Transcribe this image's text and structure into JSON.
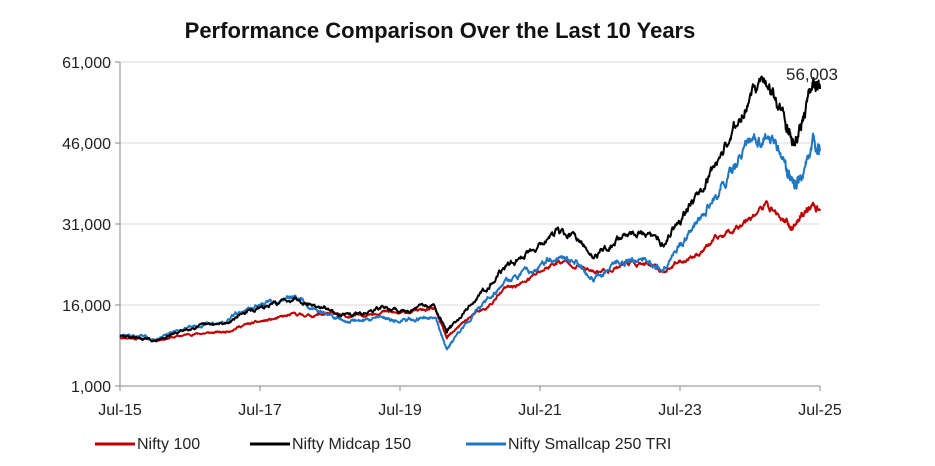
{
  "chart_data": {
    "type": "line",
    "title": "Performance Comparison Over the Last 10 Years",
    "xlabel": "",
    "ylabel": "",
    "x_ticks": [
      "Jul-15",
      "Jul-17",
      "Jul-19",
      "Jul-21",
      "Jul-23",
      "Jul-25"
    ],
    "y_ticks": [
      "1,000",
      "16,000",
      "31,000",
      "46,000",
      "61,000"
    ],
    "ylim": [
      1000,
      61000
    ],
    "xlim": [
      2015.5,
      2025.5
    ],
    "grid": "horizontal",
    "legend_position": "bottom",
    "annotation": {
      "label": "56,003",
      "x": 2025.5,
      "y": 56003,
      "series": "Nifty Midcap 150"
    },
    "series": [
      {
        "name": "Nifty 100",
        "color": "#c00000",
        "x": [
          2015.5,
          2015.75,
          2016.0,
          2016.25,
          2016.5,
          2016.75,
          2017.0,
          2017.25,
          2017.5,
          2017.75,
          2018.0,
          2018.25,
          2018.5,
          2018.75,
          2019.0,
          2019.25,
          2019.5,
          2019.75,
          2020.0,
          2020.17,
          2020.25,
          2020.5,
          2020.75,
          2021.0,
          2021.25,
          2021.5,
          2021.75,
          2022.0,
          2022.25,
          2022.5,
          2022.75,
          2023.0,
          2023.25,
          2023.5,
          2023.75,
          2024.0,
          2024.25,
          2024.5,
          2024.75,
          2025.0,
          2025.1,
          2025.25,
          2025.4,
          2025.5
        ],
        "values": [
          10000,
          9800,
          9500,
          10000,
          10600,
          10800,
          11000,
          12200,
          12900,
          13500,
          14300,
          14000,
          14500,
          13800,
          14200,
          14800,
          14400,
          15000,
          15200,
          9800,
          11000,
          13800,
          15500,
          19000,
          20000,
          22200,
          24000,
          23500,
          22000,
          22500,
          24000,
          23500,
          22200,
          24000,
          25500,
          28000,
          30000,
          32500,
          34500,
          31500,
          30000,
          33000,
          34500,
          33800
        ]
      },
      {
        "name": "Nifty Midcap 150",
        "color": "#000000",
        "x": [
          2015.5,
          2015.75,
          2016.0,
          2016.25,
          2016.5,
          2016.75,
          2017.0,
          2017.25,
          2017.5,
          2017.75,
          2018.0,
          2018.25,
          2018.5,
          2018.75,
          2019.0,
          2019.25,
          2019.5,
          2019.75,
          2020.0,
          2020.17,
          2020.25,
          2020.5,
          2020.75,
          2021.0,
          2021.25,
          2021.5,
          2021.75,
          2022.0,
          2022.25,
          2022.5,
          2022.75,
          2023.0,
          2023.25,
          2023.5,
          2023.75,
          2024.0,
          2024.25,
          2024.5,
          2024.75,
          2025.0,
          2025.1,
          2025.25,
          2025.4,
          2025.5
        ],
        "values": [
          10200,
          10000,
          9300,
          10500,
          11800,
          12200,
          12500,
          14500,
          15300,
          16300,
          17500,
          16000,
          15000,
          14000,
          14500,
          15600,
          14800,
          15400,
          15800,
          11000,
          12500,
          16000,
          19500,
          23000,
          25000,
          27500,
          29500,
          28500,
          25000,
          27000,
          29500,
          29000,
          27500,
          32000,
          37000,
          42000,
          48000,
          55000,
          57000,
          50000,
          46000,
          50000,
          56500,
          56003
        ]
      },
      {
        "name": "Nifty Smallcap 250 TRI",
        "color": "#1f77c4",
        "x": [
          2015.5,
          2015.75,
          2016.0,
          2016.25,
          2016.5,
          2016.75,
          2017.0,
          2017.25,
          2017.5,
          2017.75,
          2018.0,
          2018.25,
          2018.5,
          2018.75,
          2019.0,
          2019.25,
          2019.5,
          2019.75,
          2020.0,
          2020.17,
          2020.25,
          2020.5,
          2020.75,
          2021.0,
          2021.25,
          2021.5,
          2021.75,
          2022.0,
          2022.25,
          2022.5,
          2022.75,
          2023.0,
          2023.25,
          2023.5,
          2023.75,
          2024.0,
          2024.25,
          2024.5,
          2024.75,
          2025.0,
          2025.1,
          2025.25,
          2025.4,
          2025.5
        ],
        "values": [
          10500,
          10200,
          9600,
          10800,
          12200,
          12500,
          12800,
          15000,
          16000,
          16500,
          17800,
          15500,
          14000,
          13000,
          13200,
          14000,
          12800,
          13500,
          14200,
          7500,
          9500,
          13500,
          17000,
          20500,
          21500,
          23500,
          25000,
          24000,
          21000,
          23000,
          24500,
          24000,
          22500,
          27000,
          32000,
          36000,
          41000,
          46000,
          48000,
          42000,
          38000,
          40000,
          45500,
          45000
        ]
      }
    ]
  }
}
